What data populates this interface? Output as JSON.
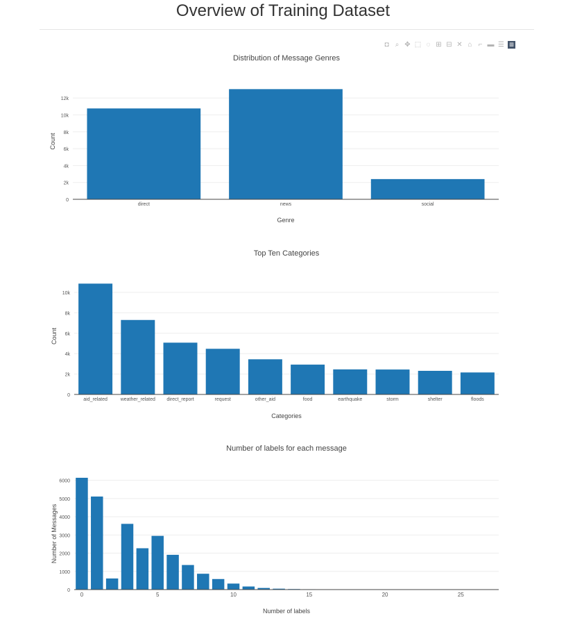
{
  "page": {
    "title": "Overview of Training Dataset"
  },
  "modebar": {
    "buttons": [
      {
        "icon": "camera-icon",
        "glyph": "◘"
      },
      {
        "icon": "zoom-icon",
        "glyph": "⌕"
      },
      {
        "icon": "pan-icon",
        "glyph": "✥"
      },
      {
        "icon": "box-select-icon",
        "glyph": "⬚"
      },
      {
        "icon": "lasso-select-icon",
        "glyph": "◌"
      },
      {
        "icon": "zoom-in-icon",
        "glyph": "⊞"
      },
      {
        "icon": "zoom-out-icon",
        "glyph": "⊟"
      },
      {
        "icon": "autoscale-icon",
        "glyph": "✕"
      },
      {
        "icon": "home-icon",
        "glyph": "⌂"
      },
      {
        "icon": "spike-lines-icon",
        "glyph": "⌐"
      },
      {
        "icon": "hover-closest-icon",
        "glyph": "▬"
      },
      {
        "icon": "hover-compare-icon",
        "glyph": "☰"
      },
      {
        "icon": "plotly-logo-icon",
        "glyph": "▥"
      }
    ]
  },
  "chart_data": [
    {
      "type": "bar",
      "title": "Distribution of Message Genres",
      "xlabel": "Genre",
      "ylabel": "Count",
      "categories": [
        "direct",
        "news",
        "social"
      ],
      "values": [
        10766,
        13054,
        2396
      ],
      "ylim": [
        0,
        13741
      ],
      "yticks": [
        0,
        2000,
        4000,
        6000,
        8000,
        10000,
        12000
      ],
      "ytick_labels": [
        "0",
        "2k",
        "4k",
        "6k",
        "8k",
        "10k",
        "12k"
      ],
      "grid": true,
      "color": "#1f77b4"
    },
    {
      "type": "bar",
      "title": "Top Ten Categories",
      "xlabel": "Categories",
      "ylabel": "Count",
      "categories": [
        "aid_related",
        "weather_related",
        "direct_report",
        "request",
        "other_aid",
        "food",
        "earthquake",
        "storm",
        "shelter",
        "floods"
      ],
      "values": [
        10860,
        7297,
        5075,
        4474,
        3446,
        2923,
        2455,
        2443,
        2314,
        2155
      ],
      "ylim": [
        0,
        11432
      ],
      "yticks": [
        0,
        2000,
        4000,
        6000,
        8000,
        10000
      ],
      "ytick_labels": [
        "0",
        "2k",
        "4k",
        "6k",
        "8k",
        "10k"
      ],
      "grid": true,
      "color": "#1f77b4"
    },
    {
      "type": "bar",
      "title": "Number of labels for each message",
      "xlabel": "Number of labels",
      "ylabel": "Number of Messages",
      "x": [
        0,
        1,
        2,
        3,
        4,
        5,
        6,
        7,
        8,
        9,
        10,
        11,
        12,
        13,
        14,
        15,
        16,
        17,
        18,
        19,
        20,
        21,
        22,
        23,
        24,
        25,
        26,
        27
      ],
      "values": [
        6140,
        5110,
        610,
        3610,
        2270,
        2950,
        1910,
        1350,
        870,
        580,
        330,
        170,
        90,
        50,
        30,
        20,
        12,
        10,
        8,
        6,
        5,
        4,
        3,
        3,
        2,
        2,
        1,
        1
      ],
      "xlim": [
        -0.5,
        27.5
      ],
      "ylim": [
        0,
        6140
      ],
      "xticks": [
        0,
        5,
        10,
        15,
        20,
        25
      ],
      "yticks": [
        0,
        1000,
        2000,
        3000,
        4000,
        5000,
        6000
      ],
      "ytick_labels": [
        "0",
        "1000",
        "2000",
        "3000",
        "4000",
        "5000",
        "6000"
      ],
      "grid": true,
      "color": "#1f77b4"
    }
  ]
}
